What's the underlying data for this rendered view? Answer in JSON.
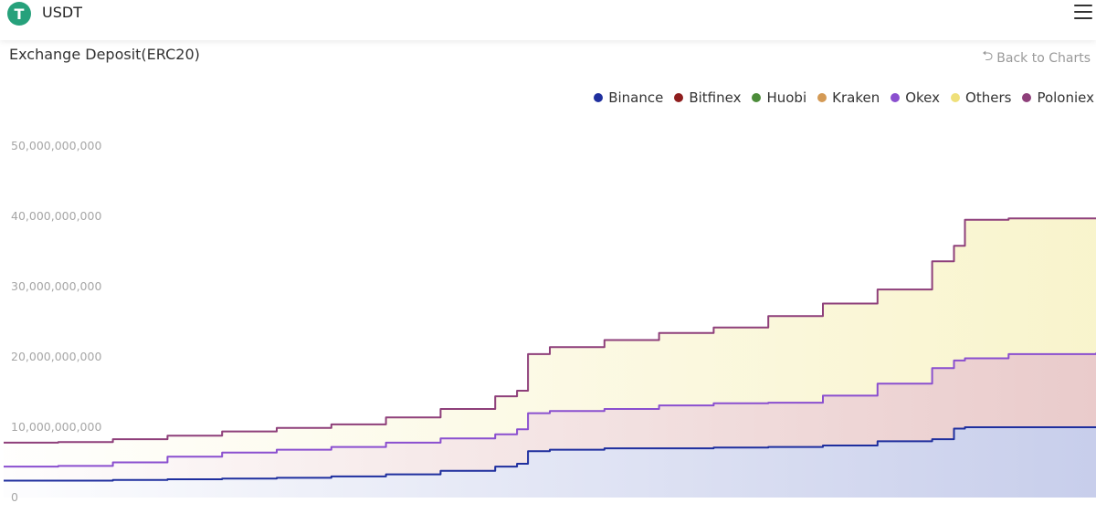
{
  "app": {
    "logo_glyph": "T",
    "title": "USDT",
    "menu_icon": "hamburger-menu-icon"
  },
  "page": {
    "title": "Exchange Deposit(ERC20)",
    "back_label": "Back to Charts",
    "back_icon": "undo-arrow-icon"
  },
  "chart_data": {
    "type": "area",
    "stacked": true,
    "y_ticks": [
      "0",
      "10,000,000,000",
      "20,000,000,000",
      "30,000,000,000",
      "40,000,000,000",
      "50,000,000,000"
    ],
    "ylim": [
      0,
      50000000000
    ],
    "grid": false,
    "legend_position": "top-right",
    "legend": [
      {
        "name": "Binance",
        "color": "#1f2f9e"
      },
      {
        "name": "Bitfinex",
        "color": "#8f1e1e"
      },
      {
        "name": "Huobi",
        "color": "#4c8c3a"
      },
      {
        "name": "Kraken",
        "color": "#d49a55"
      },
      {
        "name": "Okex",
        "color": "#8a4fcf"
      },
      {
        "name": "Others",
        "color": "#efe07a"
      },
      {
        "name": "Poloniex",
        "color": "#8e3f7a"
      }
    ],
    "x": [
      0,
      0.05,
      0.1,
      0.15,
      0.2,
      0.25,
      0.3,
      0.35,
      0.4,
      0.45,
      0.47,
      0.48,
      0.5,
      0.55,
      0.6,
      0.65,
      0.7,
      0.75,
      0.8,
      0.85,
      0.87,
      0.88,
      0.92,
      1.0
    ],
    "series": [
      {
        "name": "Binance",
        "color": "#1f2f9e",
        "values": [
          2400000000.0,
          2400000000.0,
          2500000000.0,
          2600000000.0,
          2700000000.0,
          2800000000.0,
          3000000000.0,
          3300000000.0,
          3800000000.0,
          4400000000.0,
          4800000000.0,
          6600000000.0,
          6800000000.0,
          7000000000.0,
          7000000000.0,
          7100000000.0,
          7200000000.0,
          7400000000.0,
          8000000000.0,
          8300000000.0,
          9800000000.0,
          10000000000.0,
          10000000000.0,
          10000000000.0
        ]
      },
      {
        "name": "Okex",
        "color": "#8a4fcf",
        "values": [
          4400000000.0,
          4500000000.0,
          5000000000.0,
          5800000000.0,
          6400000000.0,
          6800000000.0,
          7200000000.0,
          7800000000.0,
          8400000000.0,
          9000000000.0,
          9700000000.0,
          12000000000.0,
          12300000000.0,
          12600000000.0,
          13100000000.0,
          13400000000.0,
          13500000000.0,
          14500000000.0,
          16200000000.0,
          18400000000.0,
          19500000000.0,
          19800000000.0,
          20400000000.0,
          20600000000.0
        ]
      },
      {
        "name": "Poloniex",
        "color": "#8e3f7a",
        "values": [
          7800000000.0,
          7900000000.0,
          8300000000.0,
          8800000000.0,
          9400000000.0,
          9900000000.0,
          10400000000.0,
          11400000000.0,
          12600000000.0,
          14400000000.0,
          15200000000.0,
          20400000000.0,
          21400000000.0,
          22400000000.0,
          23400000000.0,
          24200000000.0,
          25800000000.0,
          27600000000.0,
          29600000000.0,
          33600000000.0,
          35800000000.0,
          39500000000.0,
          39700000000.0,
          39700000000.0
        ]
      }
    ],
    "fills": [
      {
        "from": "Binance",
        "to": null,
        "color": "#3950b8"
      },
      {
        "from": "Okex",
        "to": "Binance",
        "color": "#b24545"
      },
      {
        "from": "Poloniex",
        "to": "Okex",
        "color": "#e8d84a"
      }
    ]
  }
}
